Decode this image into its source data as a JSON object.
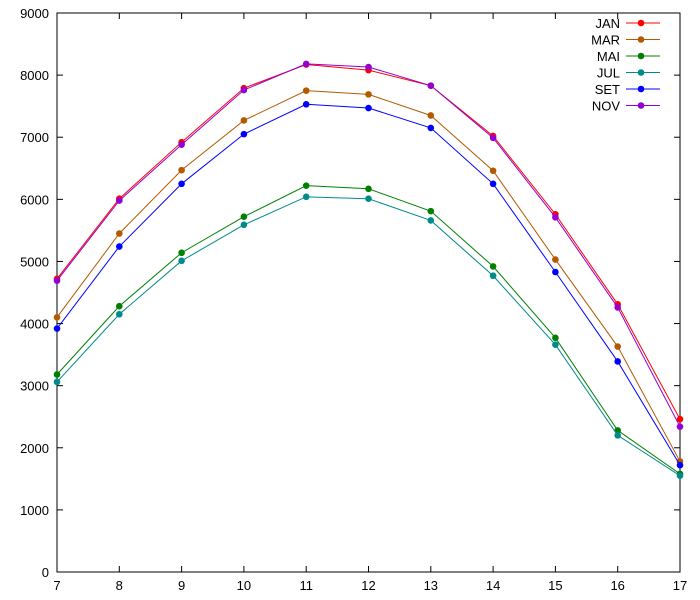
{
  "chart_data": {
    "type": "line",
    "title": "",
    "xlabel": "",
    "ylabel": "",
    "x": [
      7,
      8,
      9,
      10,
      11,
      12,
      13,
      14,
      15,
      16,
      17
    ],
    "xlim": [
      7,
      17
    ],
    "ylim": [
      0,
      9000
    ],
    "xticks": [
      7,
      8,
      9,
      10,
      11,
      12,
      13,
      14,
      15,
      16,
      17
    ],
    "yticks": [
      0,
      1000,
      2000,
      3000,
      4000,
      5000,
      6000,
      7000,
      8000,
      9000
    ],
    "grid": false,
    "legend_position": "top-right",
    "series": [
      {
        "name": "JAN",
        "color": "#ff0000",
        "values": [
          4720,
          6010,
          6920,
          7790,
          8170,
          8080,
          7830,
          7020,
          5760,
          4310,
          2460
        ]
      },
      {
        "name": "MAR",
        "color": "#b35900",
        "values": [
          4100,
          5450,
          6470,
          7270,
          7750,
          7690,
          7350,
          6460,
          5030,
          3630,
          1780
        ]
      },
      {
        "name": "MAI",
        "color": "#008000",
        "values": [
          3180,
          4280,
          5140,
          5720,
          6220,
          6170,
          5810,
          4920,
          3770,
          2280,
          1580
        ]
      },
      {
        "name": "JUL",
        "color": "#008b8b",
        "values": [
          3060,
          4150,
          5010,
          5590,
          6040,
          6010,
          5660,
          4770,
          3660,
          2200,
          1550
        ]
      },
      {
        "name": "SET",
        "color": "#0000ff",
        "values": [
          3920,
          5240,
          6250,
          7050,
          7530,
          7470,
          7150,
          6250,
          4830,
          3390,
          1720
        ]
      },
      {
        "name": "NOV",
        "color": "#9400d3",
        "values": [
          4690,
          5980,
          6880,
          7760,
          8180,
          8130,
          7830,
          6990,
          5710,
          4260,
          2340
        ]
      }
    ]
  }
}
